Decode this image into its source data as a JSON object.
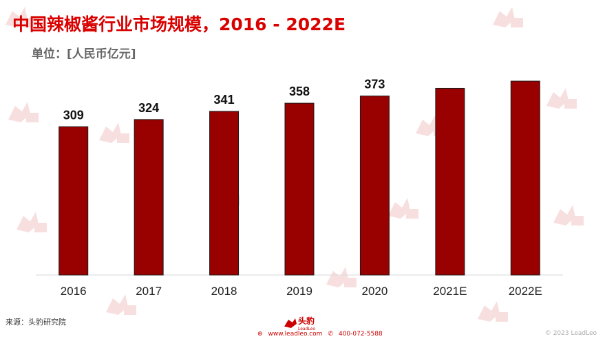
{
  "title": "中国辣椒酱行业市场规模，2016 - 2022E",
  "unit_label": "单位：[人民币亿元]",
  "source": "来源：头豹研究院",
  "footer": {
    "website": "www.leadleo.com",
    "phone": "400-072-5588",
    "copyright": "© 2023 LeadLeo",
    "logo_text": "头豹",
    "logo_sub": "LeadLeo"
  },
  "colors": {
    "bar": "#990000",
    "title": "#d90000",
    "axis": "#d9d9d9"
  },
  "chart_data": {
    "type": "bar",
    "title": "中国辣椒酱行业市场规模，2016 - 2022E",
    "ylabel": "单位：[人民币亿元]",
    "xlabel": "",
    "categories": [
      "2016",
      "2017",
      "2018",
      "2019",
      "2020",
      "2021E",
      "2022E"
    ],
    "values": [
      309,
      324,
      341,
      358,
      373,
      389,
      404
    ],
    "data_labels": [
      "309",
      "324",
      "341",
      "358",
      "373",
      "",
      ""
    ],
    "ylim": [
      0,
      420
    ],
    "grid": false,
    "legend": "none"
  }
}
